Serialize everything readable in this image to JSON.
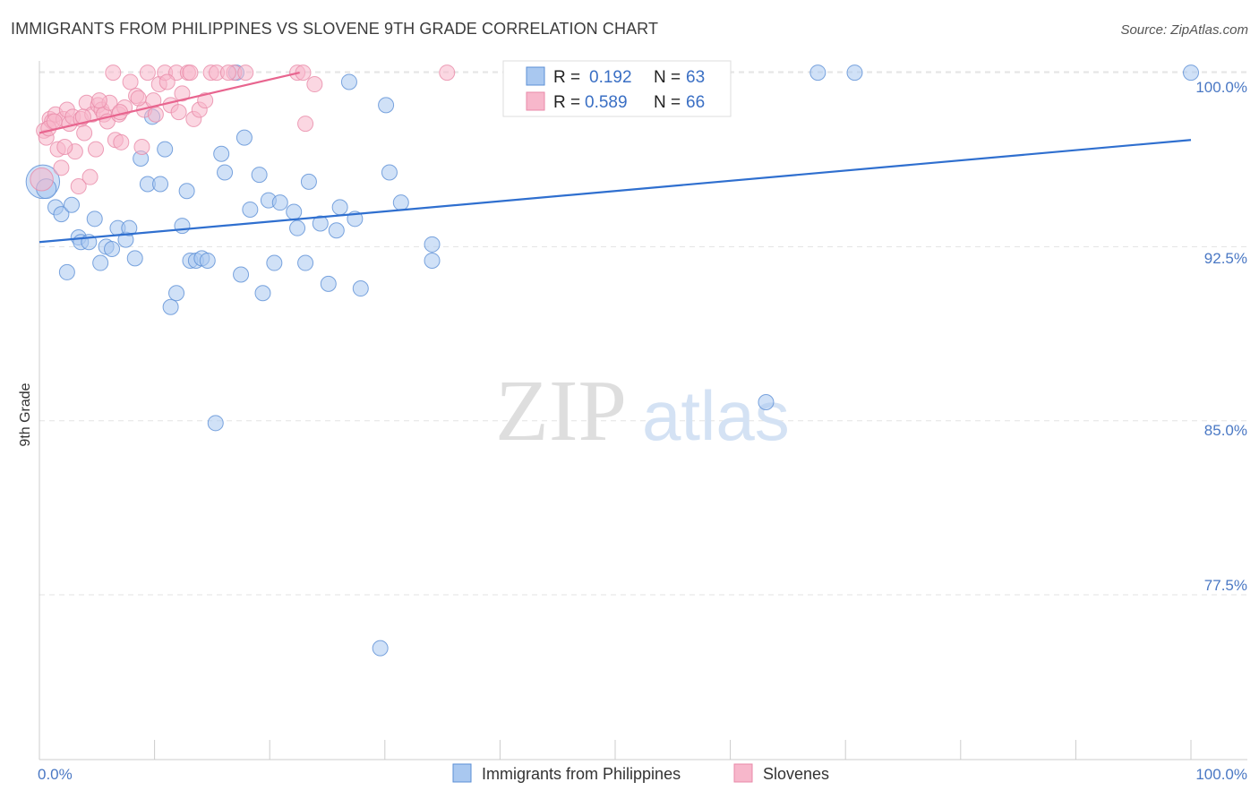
{
  "title": "IMMIGRANTS FROM PHILIPPINES VS SLOVENE 9TH GRADE CORRELATION CHART",
  "source": "Source: ZipAtlas.com",
  "watermark": {
    "zip": "ZIP",
    "atlas": "atlas"
  },
  "colors": {
    "blue_fill": "#a9c8f0",
    "blue_stroke": "#5b8fd6",
    "blue_line": "#2f6fcf",
    "pink_fill": "#f7b7cb",
    "pink_stroke": "#e88aa8",
    "pink_line": "#e8658f",
    "grid": "#e3e3e3",
    "axis_text": "#4a78c4"
  },
  "legend": {
    "rows": [
      {
        "r_label": "R =",
        "r_value": "0.192",
        "n_label": "N =",
        "n_value": "63"
      },
      {
        "r_label": "R =",
        "r_value": "0.589",
        "n_label": "N =",
        "n_value": "66"
      }
    ]
  },
  "bottom_legend": [
    "Immigrants from Philippines",
    "Slovenes"
  ],
  "chart_data": {
    "type": "scatter",
    "title": "IMMIGRANTS FROM PHILIPPINES VS SLOVENE 9TH GRADE CORRELATION CHART",
    "xlabel": "",
    "ylabel": "9th Grade",
    "xlim": [
      0,
      100
    ],
    "ylim": [
      70.4,
      101.2
    ],
    "x_tick_labels": [
      "0.0%",
      "100.0%"
    ],
    "y_ticks": [
      77.5,
      85.0,
      92.5,
      100.0
    ],
    "y_tick_labels": [
      "77.5%",
      "85.0%",
      "92.5%",
      "100.0%"
    ],
    "grid": true,
    "series": [
      {
        "name": "Immigrants from Philippines",
        "color": "blue",
        "trend": {
          "x": [
            0,
            100
          ],
          "y": [
            92.7,
            97.1
          ]
        },
        "points": [
          [
            0.3,
            95.3,
            2.2
          ],
          [
            0.6,
            95.0,
            1.3
          ],
          [
            1.4,
            94.2,
            1
          ],
          [
            1.9,
            93.9,
            1
          ],
          [
            2.4,
            91.4,
            1
          ],
          [
            2.8,
            94.3,
            1
          ],
          [
            3.4,
            92.9,
            1
          ],
          [
            3.6,
            92.7,
            1
          ],
          [
            4.3,
            92.7,
            1
          ],
          [
            4.8,
            93.7,
            1
          ],
          [
            5.3,
            91.8,
            1
          ],
          [
            5.8,
            92.5,
            1
          ],
          [
            6.3,
            92.4,
            1
          ],
          [
            6.8,
            93.3,
            1
          ],
          [
            7.5,
            92.8,
            1
          ],
          [
            7.8,
            93.3,
            1
          ],
          [
            8.3,
            92.0,
            1
          ],
          [
            8.8,
            96.3,
            1
          ],
          [
            9.4,
            95.2,
            1
          ],
          [
            9.8,
            98.1,
            1
          ],
          [
            10.5,
            95.2,
            1
          ],
          [
            10.9,
            96.7,
            1
          ],
          [
            11.4,
            89.9,
            1
          ],
          [
            11.9,
            90.5,
            1
          ],
          [
            12.4,
            93.4,
            1
          ],
          [
            12.8,
            94.9,
            1
          ],
          [
            13.1,
            91.9,
            1
          ],
          [
            13.6,
            91.9,
            1
          ],
          [
            14.1,
            92.0,
            1
          ],
          [
            14.6,
            91.9,
            1
          ],
          [
            15.3,
            84.9,
            1
          ],
          [
            15.8,
            96.5,
            1
          ],
          [
            16.1,
            95.7,
            1
          ],
          [
            17.1,
            100.0,
            1
          ],
          [
            17.5,
            91.3,
            1
          ],
          [
            17.8,
            97.2,
            1
          ],
          [
            18.3,
            94.1,
            1
          ],
          [
            19.1,
            95.6,
            1
          ],
          [
            19.4,
            90.5,
            1
          ],
          [
            19.9,
            94.5,
            1
          ],
          [
            20.4,
            91.8,
            1
          ],
          [
            20.9,
            94.4,
            1
          ],
          [
            22.1,
            94.0,
            1
          ],
          [
            22.4,
            93.3,
            1
          ],
          [
            23.1,
            91.8,
            1
          ],
          [
            23.4,
            95.3,
            1
          ],
          [
            24.4,
            93.5,
            1
          ],
          [
            25.1,
            90.9,
            1
          ],
          [
            25.8,
            93.2,
            1
          ],
          [
            26.1,
            94.2,
            1
          ],
          [
            27.4,
            93.7,
            1
          ],
          [
            26.9,
            99.6,
            1
          ],
          [
            27.9,
            90.7,
            1
          ],
          [
            29.6,
            75.2,
            1
          ],
          [
            30.1,
            98.6,
            1
          ],
          [
            30.4,
            95.7,
            1
          ],
          [
            31.4,
            94.4,
            1
          ],
          [
            34.1,
            92.6,
            1
          ],
          [
            34.1,
            91.9,
            1
          ],
          [
            63.1,
            85.8,
            1
          ],
          [
            67.6,
            100.0,
            1
          ],
          [
            70.8,
            100.0,
            1
          ],
          [
            100.0,
            100.0,
            1
          ]
        ]
      },
      {
        "name": "Slovenes",
        "color": "pink",
        "trend": {
          "x": [
            0,
            22.6
          ],
          "y": [
            97.4,
            100.0
          ]
        },
        "points": [
          [
            0.2,
            95.4,
            1.5
          ],
          [
            0.4,
            97.5,
            1
          ],
          [
            0.6,
            97.2,
            1
          ],
          [
            0.9,
            98.0,
            1
          ],
          [
            1.1,
            97.9,
            1
          ],
          [
            1.4,
            98.2,
            1
          ],
          [
            1.6,
            96.7,
            1
          ],
          [
            1.9,
            95.9,
            1
          ],
          [
            2.1,
            98.0,
            1
          ],
          [
            2.4,
            98.4,
            1
          ],
          [
            2.6,
            97.8,
            1
          ],
          [
            2.9,
            98.1,
            1
          ],
          [
            3.1,
            96.6,
            1
          ],
          [
            3.4,
            95.1,
            1
          ],
          [
            3.6,
            98.0,
            1
          ],
          [
            3.9,
            97.4,
            1
          ],
          [
            4.1,
            98.7,
            1
          ],
          [
            4.4,
            95.5,
            1
          ],
          [
            4.6,
            98.2,
            1
          ],
          [
            4.9,
            96.7,
            1
          ],
          [
            5.1,
            98.6,
            1
          ],
          [
            5.4,
            98.4,
            1
          ],
          [
            5.6,
            98.2,
            1
          ],
          [
            5.9,
            97.9,
            1
          ],
          [
            6.1,
            98.7,
            1
          ],
          [
            6.4,
            100.0,
            1
          ],
          [
            6.6,
            97.1,
            1
          ],
          [
            6.9,
            98.2,
            1
          ],
          [
            7.1,
            97.0,
            1
          ],
          [
            7.4,
            98.5,
            1
          ],
          [
            7.9,
            99.6,
            1
          ],
          [
            8.4,
            99.0,
            1
          ],
          [
            8.9,
            96.8,
            1
          ],
          [
            9.1,
            98.4,
            1
          ],
          [
            9.4,
            100.0,
            1
          ],
          [
            9.9,
            98.8,
            1
          ],
          [
            10.4,
            99.5,
            1
          ],
          [
            10.9,
            100.0,
            1
          ],
          [
            11.4,
            98.6,
            1
          ],
          [
            11.9,
            100.0,
            1
          ],
          [
            12.4,
            99.1,
            1
          ],
          [
            12.9,
            100.0,
            1
          ],
          [
            13.4,
            98.0,
            1
          ],
          [
            13.9,
            98.4,
            1
          ],
          [
            14.4,
            98.8,
            1
          ],
          [
            14.9,
            100.0,
            1
          ],
          [
            15.4,
            100.0,
            1
          ],
          [
            16.9,
            100.0,
            1
          ],
          [
            17.9,
            100.0,
            1
          ],
          [
            22.4,
            100.0,
            1
          ],
          [
            23.1,
            97.8,
            1
          ],
          [
            23.9,
            99.5,
            1
          ],
          [
            35.4,
            100.0,
            1
          ],
          [
            0.8,
            97.6,
            1
          ],
          [
            1.3,
            97.9,
            1
          ],
          [
            2.2,
            96.8,
            1
          ],
          [
            3.8,
            98.1,
            1
          ],
          [
            5.2,
            98.8,
            1
          ],
          [
            7.0,
            98.3,
            1
          ],
          [
            8.6,
            98.9,
            1
          ],
          [
            10.1,
            98.2,
            1
          ],
          [
            11.1,
            99.6,
            1
          ],
          [
            12.1,
            98.3,
            1
          ],
          [
            13.1,
            100.0,
            1
          ],
          [
            16.4,
            100.0,
            1
          ],
          [
            22.9,
            100.0,
            1
          ]
        ]
      }
    ]
  }
}
